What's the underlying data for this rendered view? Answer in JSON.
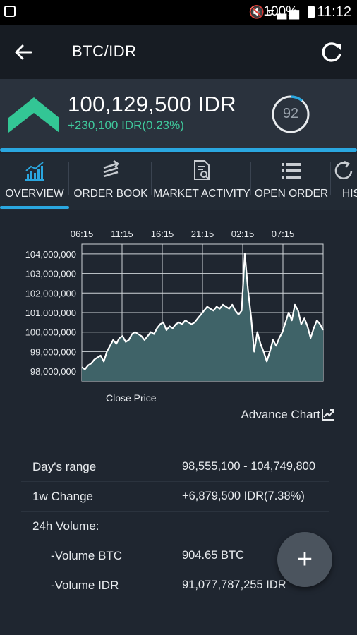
{
  "status_bar": {
    "battery": "100%",
    "time": "11:12"
  },
  "app_bar": {
    "title": "BTC/IDR"
  },
  "price": {
    "last": "100,129,500 IDR",
    "change": "+230,100 IDR(0.23%)",
    "score": "92",
    "score_fraction": 0.92
  },
  "tabs": [
    {
      "label": "OVERVIEW",
      "icon": "chart-line-icon"
    },
    {
      "label": "ORDER BOOK",
      "icon": "swap-arrows-icon"
    },
    {
      "label": "MARKET ACTIVITY",
      "icon": "document-search-icon"
    },
    {
      "label": "OPEN ORDER",
      "icon": "list-icon"
    },
    {
      "label": "HIS",
      "icon": "history-icon"
    }
  ],
  "chart_data": {
    "type": "area",
    "x_ticks": [
      "06:15",
      "11:15",
      "16:15",
      "21:15",
      "02:15",
      "07:15"
    ],
    "y_ticks": [
      "104,000,000",
      "103,000,000",
      "102,000,000",
      "101,000,000",
      "100,000,000",
      "99,000,000",
      "98,000,000"
    ],
    "ylim": [
      97500000,
      104500000
    ],
    "legend": "Close Price",
    "grid": true,
    "series": [
      {
        "values": [
          98200000,
          98100000,
          98300000,
          98400000,
          98600000,
          98700000,
          98800000,
          98500000,
          99000000,
          99300000,
          99600000,
          99400000,
          99700000,
          99800000,
          99500000,
          99600000,
          99900000,
          100000000,
          99900000,
          99800000,
          99600000,
          99800000,
          100000000,
          99900000,
          100200000,
          100400000,
          100500000,
          100100000,
          100300000,
          100200000,
          100400000,
          100500000,
          100400000,
          100600000,
          100500000,
          100400000,
          100500000,
          100700000,
          100900000,
          101100000,
          101300000,
          101200000,
          101100000,
          101300000,
          101200000,
          101400000,
          101300000,
          101200000,
          101400000,
          101100000,
          100900000,
          101100000,
          104000000,
          102200000,
          100800000,
          99000000,
          100000000,
          99400000,
          99000000,
          98500000,
          99000000,
          99600000,
          99300000,
          99700000,
          100000000,
          100500000,
          101000000,
          100600000,
          101400000,
          101100000,
          100400000,
          100700000,
          100300000,
          99700000,
          100200000,
          100600000,
          100400000,
          100100000
        ]
      }
    ]
  },
  "advance_chart": {
    "label": "Advance Chart"
  },
  "stats": [
    {
      "label": "Day's range",
      "value": "98,555,100 - 104,749,800"
    },
    {
      "label": "1w Change",
      "value": "+6,879,500 IDR(7.38%)"
    },
    {
      "label": "24h Volume:",
      "value": ""
    },
    {
      "label": "-Volume BTC",
      "value": "904.65 BTC"
    },
    {
      "label": "-Volume IDR",
      "value": "91,077,787,255 IDR"
    }
  ],
  "fab": {
    "label": "+"
  }
}
